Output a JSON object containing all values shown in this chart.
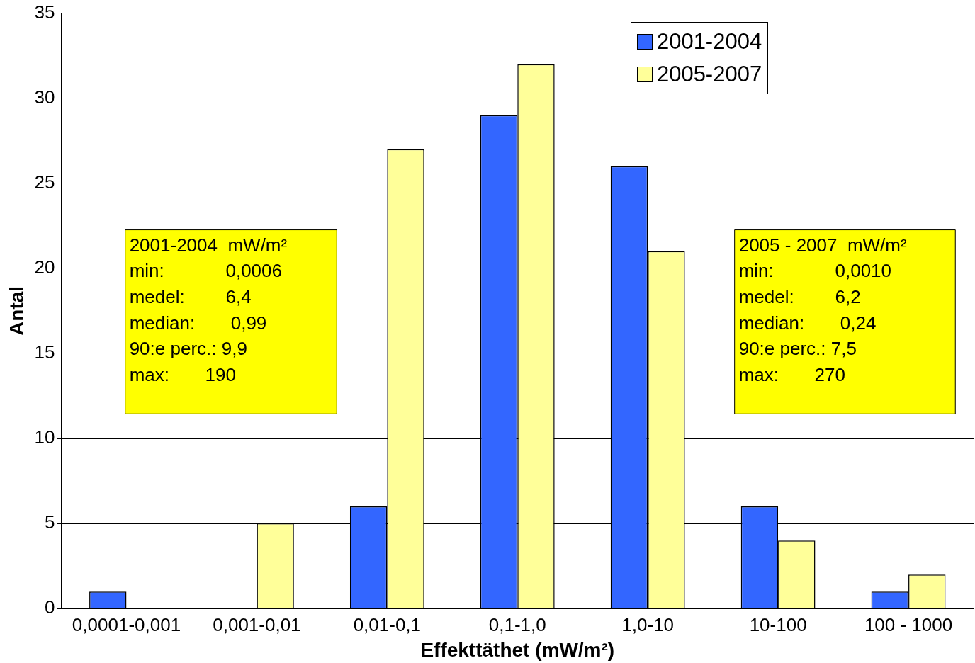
{
  "chart_data": {
    "type": "bar",
    "xlabel": "Effekttäthet (mW/m²)",
    "ylabel": "Antal",
    "categories": [
      "0,0001-0,001",
      "0,001-0,01",
      "0,01-0,1",
      "0,1-1,0",
      "1,0-10",
      "10-100",
      "100 - 1000"
    ],
    "series": [
      {
        "name": "2001-2004",
        "color": "#3366ff",
        "values": [
          1,
          0,
          6,
          29,
          26,
          6,
          1
        ]
      },
      {
        "name": "2005-2007",
        "color": "#ffff99",
        "values": [
          0,
          5,
          27,
          32,
          21,
          4,
          2
        ]
      }
    ],
    "ylim": [
      0,
      35
    ],
    "yticks": [
      0,
      5,
      10,
      15,
      20,
      25,
      30,
      35
    ],
    "grid": "y",
    "legend": "top right",
    "annotations": [
      "2001-2004  mW/m²\nmin:            0,0006\nmedel:        6,4\nmedian:       0,99\n90:e perc.: 9,9\nmax:       190",
      "2005 - 2007  mW/m²\nmin:            0,0010\nmedel:        6,2\nmedian:       0,24\n90:e perc.: 7,5\nmax:       270"
    ]
  }
}
